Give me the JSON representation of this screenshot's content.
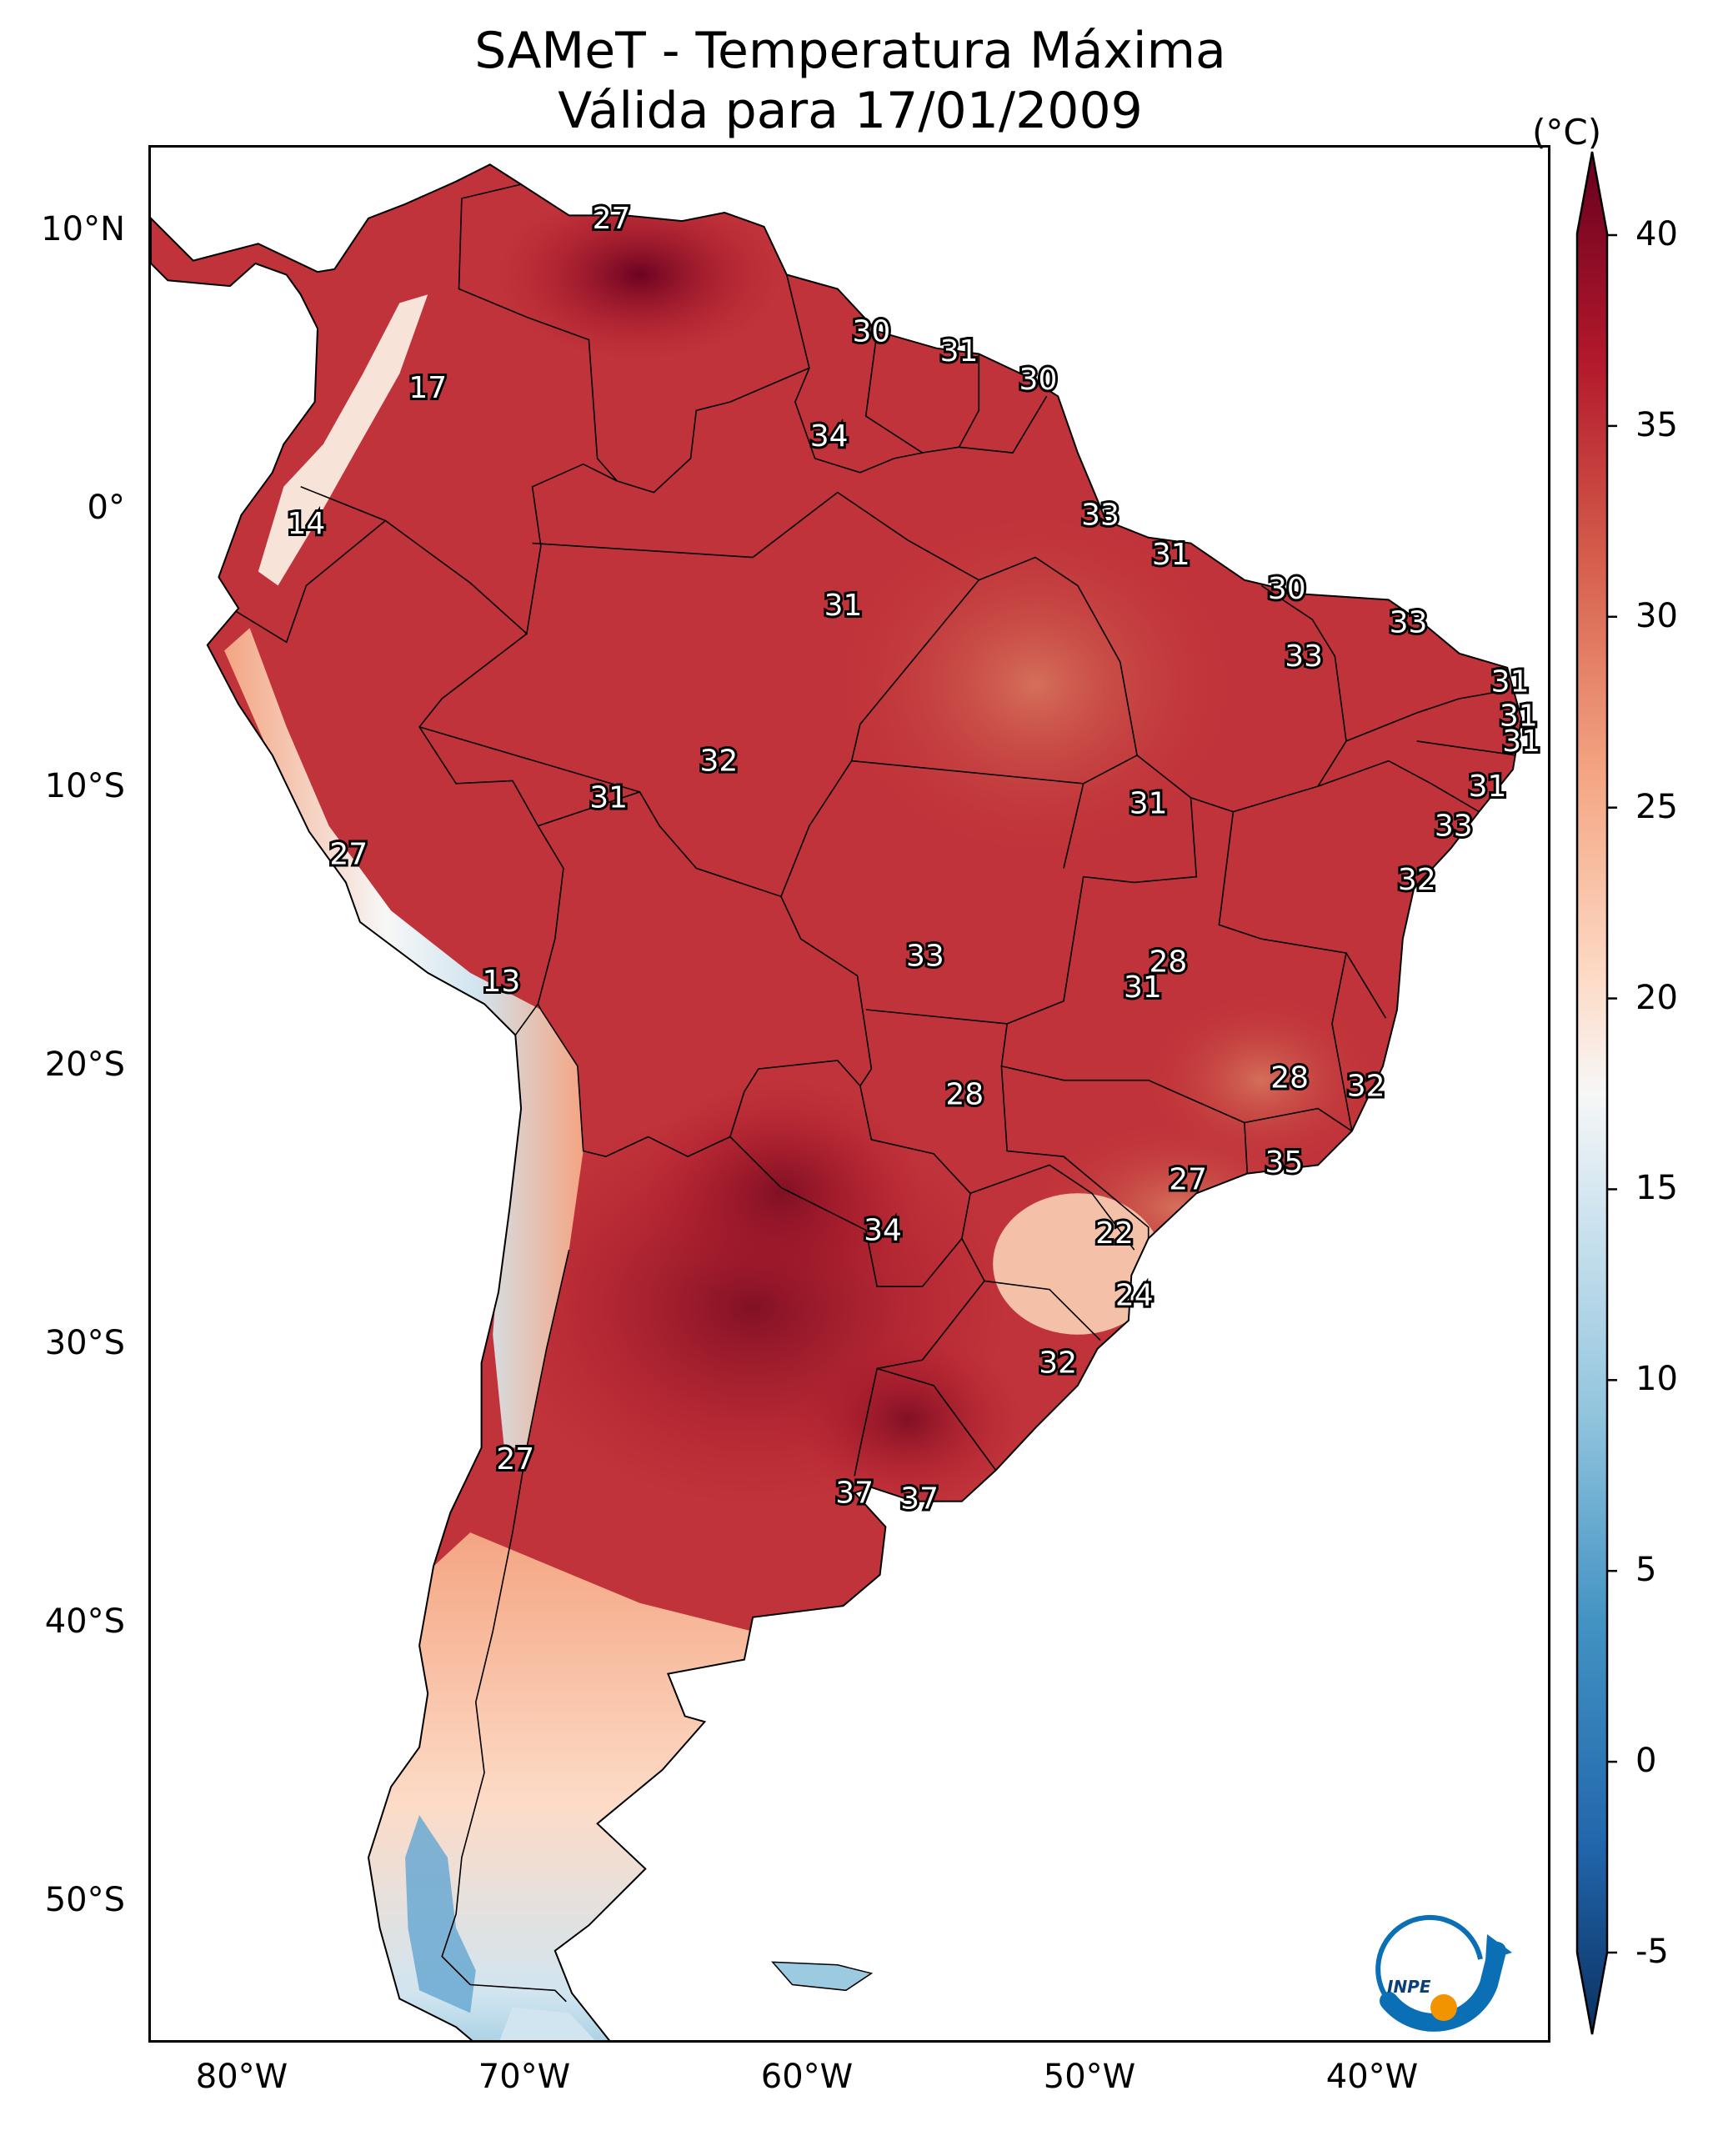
{
  "title_line1": "SAMeT - Temperatura Máxima",
  "title_line2": "Válida para 17/01/2009",
  "colorbar": {
    "unit": "(°C)",
    "ticks": [
      "40",
      "35",
      "30",
      "25",
      "20",
      "15",
      "10",
      "5",
      "0",
      "-5"
    ],
    "range": [
      -5,
      40
    ],
    "colors": [
      "#0b3060",
      "#2166ac",
      "#4393c3",
      "#92c5de",
      "#d1e5f0",
      "#f7f7f7",
      "#fddbc7",
      "#f4a582",
      "#d6604d",
      "#b2182b",
      "#67001f"
    ]
  },
  "axes": {
    "lat_labels": [
      "10°N",
      "0°",
      "10°S",
      "20°S",
      "30°S",
      "40°S",
      "50°S"
    ],
    "lon_labels": [
      "80°W",
      "70°W",
      "60°W",
      "50°W",
      "40°W"
    ]
  },
  "station_labels": [
    {
      "text": "27",
      "lon": -67.0,
      "lat": 10.5
    },
    {
      "text": "30",
      "lon": -57.8,
      "lat": 6.5
    },
    {
      "text": "31",
      "lon": -54.7,
      "lat": 5.8
    },
    {
      "text": "30",
      "lon": -51.9,
      "lat": 4.8
    },
    {
      "text": "17",
      "lon": -73.5,
      "lat": 4.5
    },
    {
      "text": "34",
      "lon": -59.3,
      "lat": 2.8
    },
    {
      "text": "33",
      "lon": -49.7,
      "lat": 0.0
    },
    {
      "text": "14",
      "lon": -77.8,
      "lat": -0.3
    },
    {
      "text": "31",
      "lon": -47.2,
      "lat": -1.4
    },
    {
      "text": "30",
      "lon": -43.1,
      "lat": -2.6
    },
    {
      "text": "31",
      "lon": -58.8,
      "lat": -3.2
    },
    {
      "text": "33",
      "lon": -38.8,
      "lat": -3.8
    },
    {
      "text": "33",
      "lon": -42.5,
      "lat": -5.0
    },
    {
      "text": "31",
      "lon": -35.2,
      "lat": -5.9
    },
    {
      "text": "31",
      "lon": -34.9,
      "lat": -7.1
    },
    {
      "text": "31",
      "lon": -34.8,
      "lat": -8.0
    },
    {
      "text": "32",
      "lon": -63.2,
      "lat": -8.7
    },
    {
      "text": "31",
      "lon": -36.0,
      "lat": -9.6
    },
    {
      "text": "31",
      "lon": -67.1,
      "lat": -10.0
    },
    {
      "text": "31",
      "lon": -48.0,
      "lat": -10.2
    },
    {
      "text": "33",
      "lon": -37.2,
      "lat": -11.0
    },
    {
      "text": "27",
      "lon": -76.3,
      "lat": -12.0
    },
    {
      "text": "32",
      "lon": -38.5,
      "lat": -12.9
    },
    {
      "text": "33",
      "lon": -55.9,
      "lat": -15.6
    },
    {
      "text": "28",
      "lon": -47.3,
      "lat": -15.8
    },
    {
      "text": "31",
      "lon": -48.2,
      "lat": -16.7
    },
    {
      "text": "13",
      "lon": -70.9,
      "lat": -16.5
    },
    {
      "text": "28",
      "lon": -43.0,
      "lat": -19.9
    },
    {
      "text": "32",
      "lon": -40.3,
      "lat": -20.2
    },
    {
      "text": "28",
      "lon": -54.5,
      "lat": -20.5
    },
    {
      "text": "35",
      "lon": -43.2,
      "lat": -22.9
    },
    {
      "text": "27",
      "lon": -46.6,
      "lat": -23.5
    },
    {
      "text": "22",
      "lon": -49.2,
      "lat": -25.4
    },
    {
      "text": "34",
      "lon": -57.4,
      "lat": -25.3
    },
    {
      "text": "24",
      "lon": -48.5,
      "lat": -27.6
    },
    {
      "text": "32",
      "lon": -51.2,
      "lat": -30.0
    },
    {
      "text": "27",
      "lon": -70.4,
      "lat": -33.4
    },
    {
      "text": "37",
      "lon": -58.4,
      "lat": -34.6
    },
    {
      "text": "37",
      "lon": -56.1,
      "lat": -34.8
    }
  ],
  "logo": {
    "text": "INPE"
  }
}
